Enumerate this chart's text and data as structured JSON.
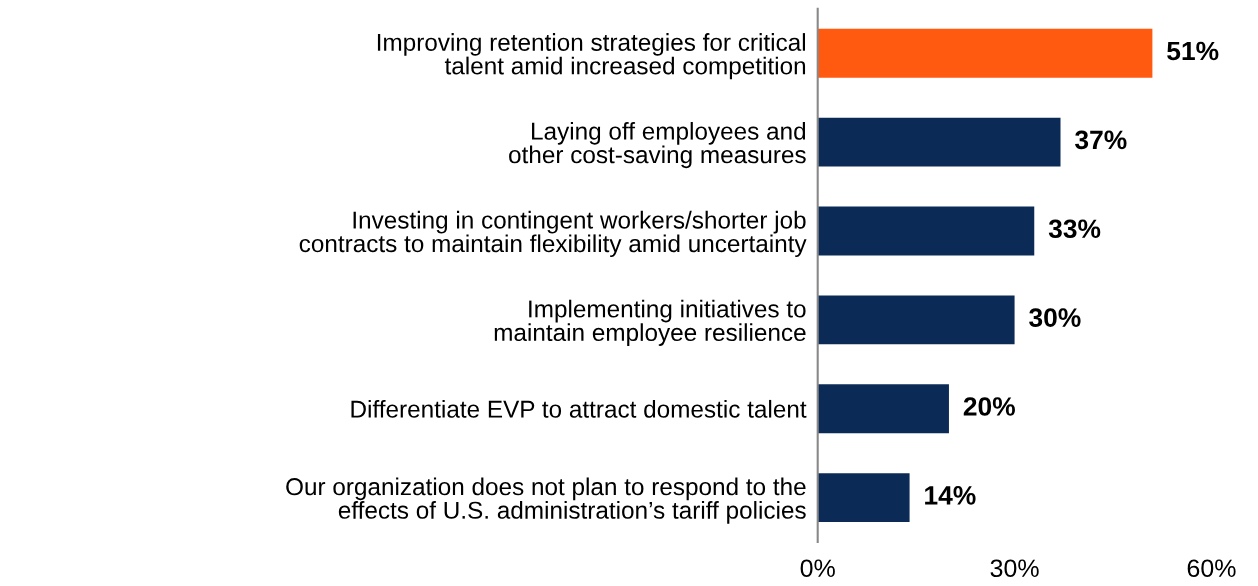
{
  "chart_data": {
    "type": "bar",
    "orientation": "horizontal",
    "categories": [
      "Improving retention strategies for critical\ntalent amid increased competition",
      "Laying off employees and\nother cost-saving measures",
      "Investing in contingent workers/shorter job\ncontracts to maintain flexibility amid uncertainty",
      "Implementing initiatives to\nmaintain employee resilience",
      "Differentiate EVP to attract domestic talent",
      "Our organization does not plan to respond to the\neffects of U.S. administration’s tariff policies"
    ],
    "values": [
      51,
      37,
      33,
      30,
      20,
      14
    ],
    "colors": [
      "#ff5a0f",
      "#0b2a55",
      "#0b2a55",
      "#0b2a55",
      "#0b2a55",
      "#0b2a55"
    ],
    "value_labels": [
      "51%",
      "37%",
      "33%",
      "30%",
      "20%",
      "14%"
    ],
    "xlim": [
      0,
      60
    ],
    "xticks": [
      {
        "value": 0,
        "label": "0%"
      },
      {
        "value": 30,
        "label": "30%"
      },
      {
        "value": 60,
        "label": "60%"
      }
    ],
    "grid": false,
    "legend": false
  }
}
